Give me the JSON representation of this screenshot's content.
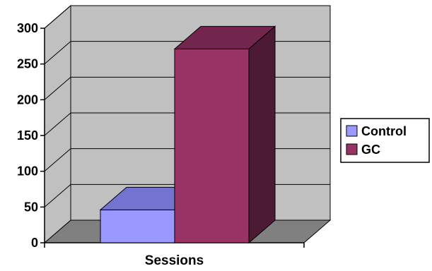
{
  "chart_data": {
    "type": "bar",
    "style": "3d-clustered-column",
    "categories": [
      "Sessions"
    ],
    "series": [
      {
        "name": "Control",
        "values": [
          46
        ],
        "color": "#9999FF",
        "top_color": "#7373D0",
        "side_color": "#5C5CA6"
      },
      {
        "name": "GC",
        "values": [
          271
        ],
        "color": "#993366",
        "top_color": "#73264D",
        "side_color": "#4D1A33"
      }
    ],
    "ylim": [
      0,
      300
    ],
    "yticks": [
      0,
      50,
      100,
      150,
      200,
      250,
      300
    ],
    "grid": true,
    "legend": "right",
    "wall_color": "#C0C0C0",
    "floor_color": "#808080"
  }
}
